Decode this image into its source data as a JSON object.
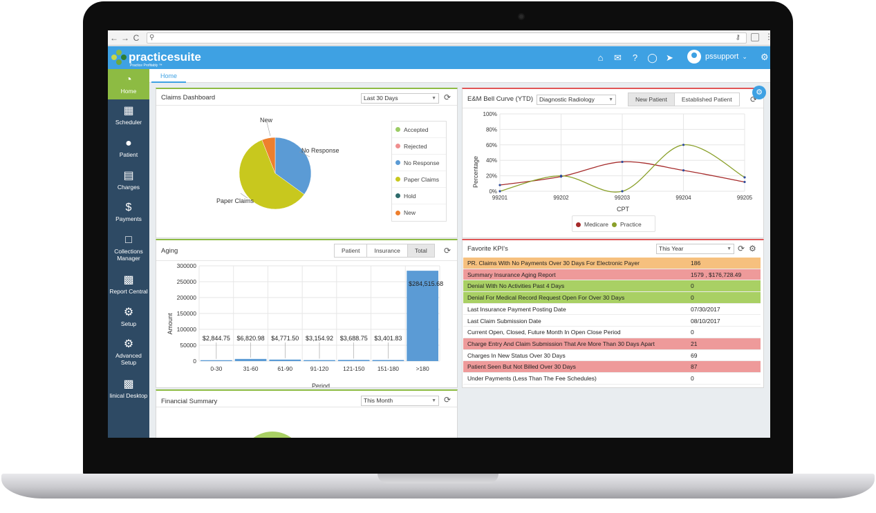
{
  "browser": {
    "url": "",
    "nav_back": "←",
    "nav_forward": "→",
    "nav_reload": "C"
  },
  "brand": {
    "name": "practicesuite",
    "tagline": "Practice Profitably ™"
  },
  "header": {
    "username": "pssupport"
  },
  "sidebar": {
    "items": [
      {
        "label": "Home",
        "icon": "speedometer-icon"
      },
      {
        "label": "Scheduler",
        "icon": "calendar-icon"
      },
      {
        "label": "Patient",
        "icon": "person-icon"
      },
      {
        "label": "Charges",
        "icon": "clipboard-icon"
      },
      {
        "label": "Payments",
        "icon": "dollar-icon"
      },
      {
        "label1": "Collections",
        "label2": "Manager",
        "icon": "folder-icon"
      },
      {
        "label": "Report Central",
        "icon": "report-icon"
      },
      {
        "label": "Setup",
        "icon": "gear-icon"
      },
      {
        "label1": "Advanced",
        "label2": "Setup",
        "icon": "gears-icon"
      },
      {
        "label": "linical Desktop",
        "icon": "desktop-icon"
      }
    ]
  },
  "tabs": {
    "home": "Home"
  },
  "claims": {
    "title": "Claims Dashboard",
    "range": "Last 30 Days",
    "legend": [
      {
        "label": "Accepted",
        "color": "#9ccc65"
      },
      {
        "label": "Rejected",
        "color": "#ef8f8f"
      },
      {
        "label": "No Response",
        "color": "#5b9bd5"
      },
      {
        "label": "Paper Claims",
        "color": "#c8c81e"
      },
      {
        "label": "Hold",
        "color": "#2e6b6b"
      },
      {
        "label": "New",
        "color": "#ee7f2d"
      }
    ],
    "callouts": {
      "new": "New",
      "no_response": "No Response",
      "paper_claims": "Paper Claims"
    }
  },
  "bell": {
    "title": "E&M Bell Curve (YTD)",
    "specialty": "Diagnostic Radiology",
    "toggle": [
      "New Patient",
      "Established Patient"
    ],
    "legend": [
      "Medicare",
      "Practice"
    ]
  },
  "aging": {
    "title": "Aging",
    "toggle": [
      "Patient",
      "Insurance",
      "Total"
    ]
  },
  "kpi": {
    "title": "Favorite KPI's",
    "range": "This Year",
    "rows": [
      {
        "label": "PR. Claims With No Payments Over 30 Days For Electronic Payer",
        "value": "186",
        "color": "#f6c07e"
      },
      {
        "label": "Summary Insurance Aging Report",
        "value": "1579 , $176,728.49",
        "color": "#ee9a9a"
      },
      {
        "label": "Denial With No Activities Past 4 Days",
        "value": "0",
        "color": "#a9d064"
      },
      {
        "label": "Denial For Medical Record Request Open For Over 30 Days",
        "value": "0",
        "color": "#a9d064"
      },
      {
        "label": "Last Insurance Payment Posting Date",
        "value": "07/30/2017",
        "color": "#ffffff"
      },
      {
        "label": "Last Claim Submission Date",
        "value": "08/10/2017",
        "color": "#ffffff"
      },
      {
        "label": "Current Open, Closed, Future Month In Open Close Period",
        "value": "0",
        "color": "#ffffff"
      },
      {
        "label": "Charge Entry And Claim Submission That Are More Than 30 Days Apart",
        "value": "21",
        "color": "#ee9a9a"
      },
      {
        "label": "Charges In New Status Over 30 Days",
        "value": "69",
        "color": "#ffffff"
      },
      {
        "label": "Patient Seen But Not Billed Over 30 Days",
        "value": "87",
        "color": "#ee9a9a"
      },
      {
        "label": "Under Payments (Less Than The Fee Schedules)",
        "value": "0",
        "color": "#ffffff"
      }
    ]
  },
  "financial": {
    "title": "Financial Summary",
    "range": "This Month"
  },
  "chart_data": [
    {
      "type": "pie",
      "categories": [
        "No Response",
        "Paper Claims",
        "New"
      ],
      "values": [
        35,
        59,
        6
      ],
      "colors": [
        "#5b9bd5",
        "#c8c81e",
        "#ee7f2d"
      ]
    },
    {
      "type": "line",
      "title": "",
      "x": [
        "99201",
        "99202",
        "99203",
        "99204",
        "99205"
      ],
      "xlabel": "CPT",
      "ylabel": "Percentage",
      "yticks": [
        "0%",
        "20%",
        "40%",
        "60%",
        "80%",
        "100%"
      ],
      "ylim": [
        0,
        100
      ],
      "series": [
        {
          "name": "Medicare",
          "values": [
            8,
            19,
            38,
            27,
            12
          ],
          "color": "#a52a2a"
        },
        {
          "name": "Practice",
          "values": [
            0,
            20,
            0,
            60,
            18
          ],
          "color": "#8aa02a"
        }
      ]
    },
    {
      "type": "bar",
      "categories": [
        "0-30",
        "31-60",
        "61-90",
        "91-120",
        "121-150",
        "151-180",
        ">180"
      ],
      "values": [
        2844.75,
        6820.98,
        4771.5,
        3154.92,
        3688.75,
        3401.83,
        284515.68
      ],
      "labels": [
        "$2,844.75",
        "$6,820.98",
        "$4,771.50",
        "$3,154.92",
        "$3,688.75",
        "$3,401.83",
        "$284,515.68"
      ],
      "xlabel": "Period",
      "ylabel": "Amount",
      "yticks": [
        "0",
        "50000",
        "100000",
        "150000",
        "200000",
        "250000",
        "300000"
      ],
      "ylim": [
        0,
        300000
      ],
      "color": "#5b9bd5"
    }
  ]
}
